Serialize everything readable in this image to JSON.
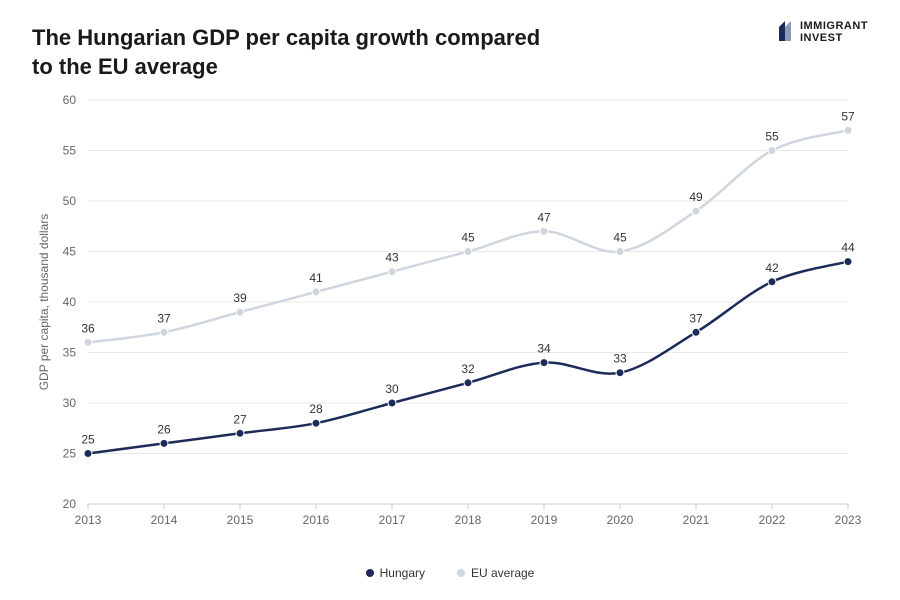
{
  "title_line1": "The Hungarian GDP per capita growth compared",
  "title_line2": "to the EU average",
  "logo": {
    "line1": "IMMIGRANT",
    "line2": "INVEST"
  },
  "chart": {
    "type": "line",
    "ylabel": "GDP per capita, thousand dollars",
    "ylim": [
      20,
      60
    ],
    "ytick_step": 5,
    "yticks": [
      20,
      25,
      30,
      35,
      40,
      45,
      50,
      55,
      60
    ],
    "categories": [
      "2013",
      "2014",
      "2015",
      "2016",
      "2017",
      "2018",
      "2019",
      "2020",
      "2021",
      "2022",
      "2023"
    ],
    "series": [
      {
        "name": "Hungary",
        "color": "#1c2b5a",
        "line_width": 2.5,
        "marker_radius": 4,
        "marker_fill": "#1c2b5a",
        "values": [
          25,
          26,
          27,
          28,
          30,
          32,
          34,
          33,
          37,
          42,
          44
        ]
      },
      {
        "name": "EU average",
        "color": "#cfd6df",
        "line_width": 2.5,
        "marker_radius": 4,
        "marker_fill": "#cfd6df",
        "values": [
          36,
          37,
          39,
          41,
          43,
          45,
          47,
          45,
          49,
          55,
          57
        ]
      }
    ],
    "grid_color": "#e8e8e8",
    "axis_color": "#cccccc",
    "background_color": "#ffffff",
    "label_fontsize": 12,
    "tick_fontsize": 12
  }
}
